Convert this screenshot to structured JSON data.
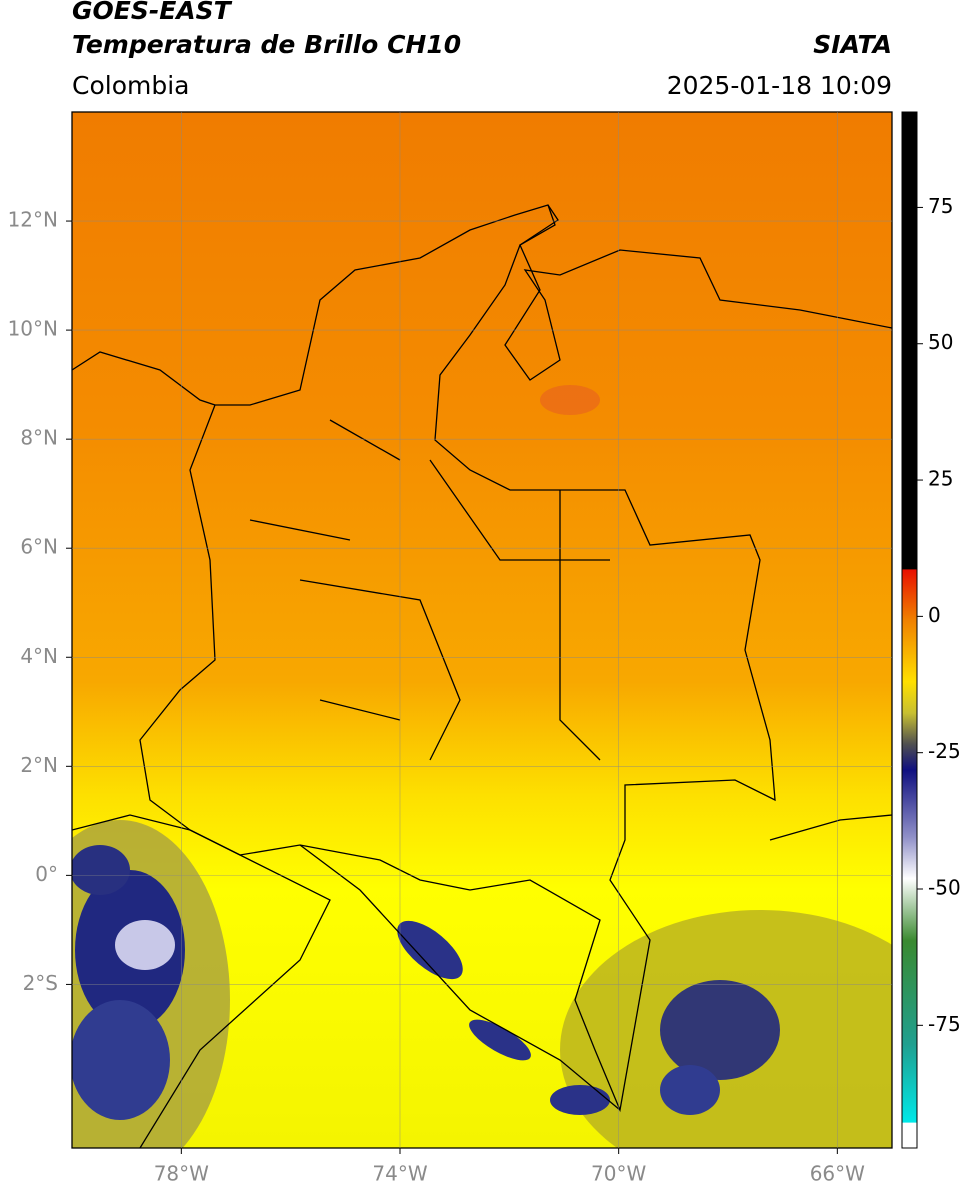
{
  "header": {
    "source": "GOES-EAST",
    "product": "Temperatura de Brillo CH10",
    "agency": "SIATA",
    "region": "Colombia",
    "datetime": "2025-01-18 10:09"
  },
  "map": {
    "lonlim": [
      -80,
      -65
    ],
    "latlim": [
      -5,
      14
    ],
    "xticks": [
      {
        "value": -78,
        "label": "78°W"
      },
      {
        "value": -74,
        "label": "74°W"
      },
      {
        "value": -70,
        "label": "70°W"
      },
      {
        "value": -66,
        "label": "66°W"
      }
    ],
    "yticks": [
      {
        "value": 12,
        "label": "12°N"
      },
      {
        "value": 10,
        "label": "10°N"
      },
      {
        "value": 8,
        "label": "8°N"
      },
      {
        "value": 6,
        "label": "6°N"
      },
      {
        "value": 4,
        "label": "4°N"
      },
      {
        "value": 2,
        "label": "2°N"
      },
      {
        "value": 0,
        "label": "0°"
      },
      {
        "value": -2,
        "label": "2°S"
      }
    ],
    "grid": true
  },
  "colorbar": {
    "lim": [
      -97.5,
      92.5
    ],
    "ticks": [
      75,
      50,
      25,
      0,
      -25,
      -50,
      -75
    ]
  }
}
